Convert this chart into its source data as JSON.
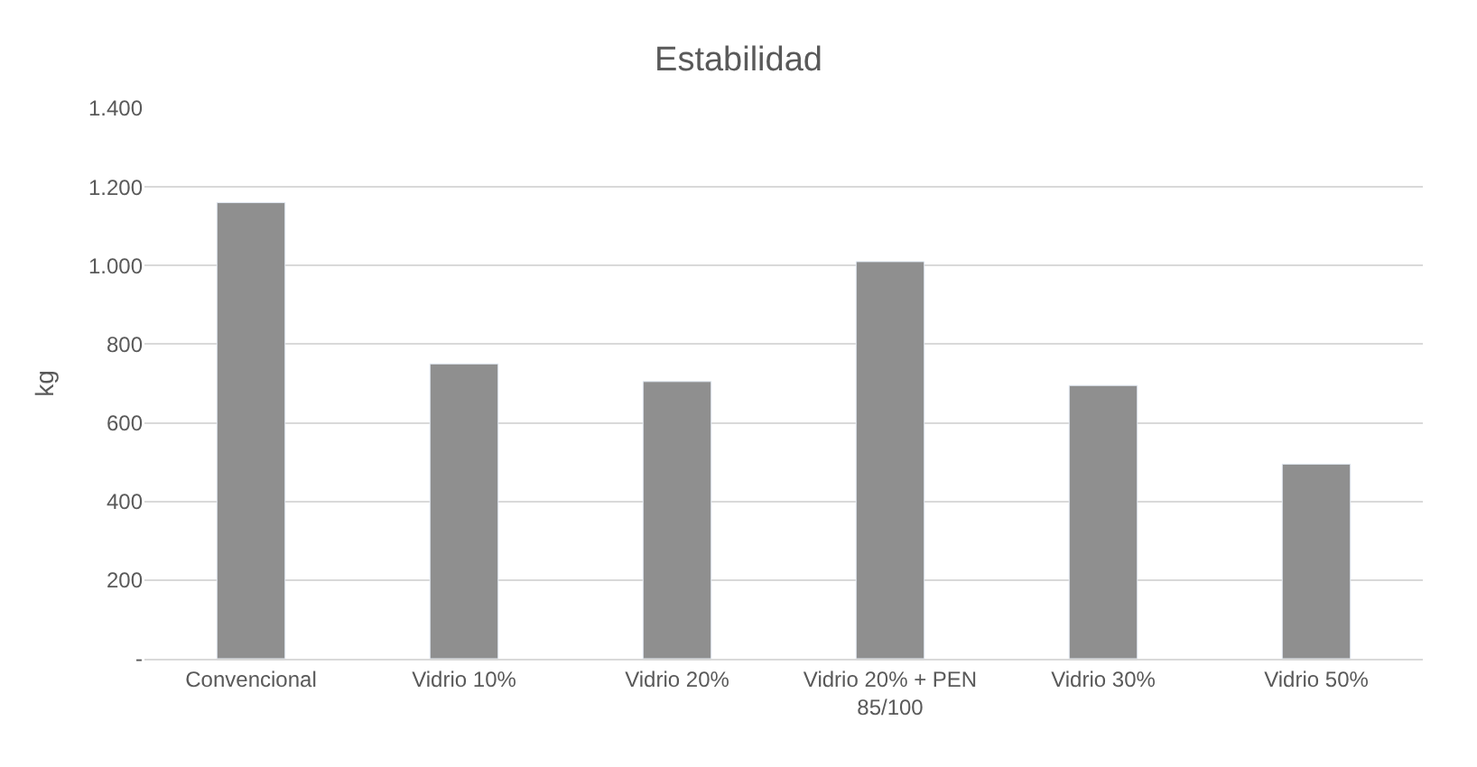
{
  "chart_data": {
    "type": "bar",
    "title": "Estabilidad",
    "ylabel": "kg",
    "categories": [
      "Convencional",
      "Vidrio 10%",
      "Vidrio 20%",
      "Vidrio 20% + PEN 85/100",
      "Vidrio 30%",
      "Vidrio 50%"
    ],
    "values": [
      1160,
      750,
      705,
      1010,
      695,
      495
    ],
    "color": "#8f8f8f",
    "ylim": [
      0,
      1400
    ],
    "yticks": [
      {
        "value": 0,
        "label": "-"
      },
      {
        "value": 200,
        "label": "200"
      },
      {
        "value": 400,
        "label": "400"
      },
      {
        "value": 600,
        "label": "600"
      },
      {
        "value": 800,
        "label": "800"
      },
      {
        "value": 1000,
        "label": "1.000"
      },
      {
        "value": 1200,
        "label": "1.200"
      },
      {
        "value": 1400,
        "label": "1.400"
      }
    ],
    "grid": "y",
    "legend": false
  }
}
